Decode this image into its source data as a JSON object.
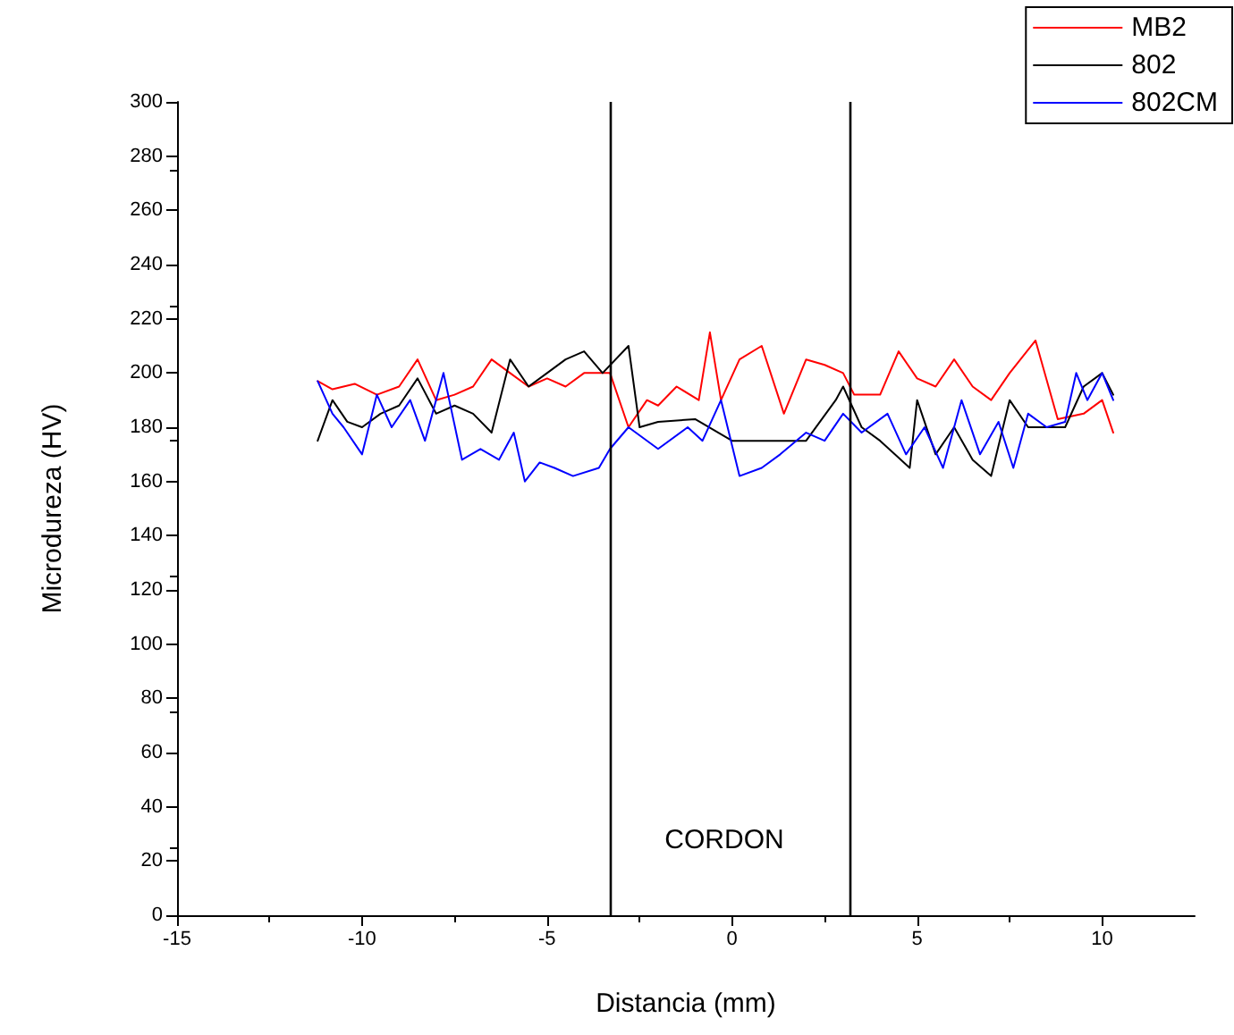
{
  "chart_data": {
    "type": "line",
    "xlabel": "Distancia (mm)",
    "ylabel": "Microdureza (HV)",
    "xlim": [
      -15,
      12.5
    ],
    "xticks": [
      -15,
      -10,
      -5,
      0,
      5,
      10
    ],
    "ylim": [
      0,
      300
    ],
    "yticks": [
      0,
      20,
      40,
      60,
      80,
      100,
      120,
      140,
      160,
      180,
      200,
      220,
      240,
      260,
      280,
      300
    ],
    "grid": false,
    "legend": "top right",
    "marker": "none",
    "line_style": "solid",
    "series": [
      {
        "name": "MB2",
        "color": "#ff0000",
        "x": [
          -11.2,
          -10.8,
          -10.2,
          -9.6,
          -9.0,
          -8.5,
          -8.0,
          -7.5,
          -7.0,
          -6.5,
          -6.0,
          -5.5,
          -5.0,
          -4.5,
          -4.0,
          -3.3,
          -2.8,
          -2.3,
          -2.0,
          -1.5,
          -0.9,
          -0.6,
          -0.3,
          0.2,
          0.8,
          1.4,
          2.0,
          2.5,
          3.0,
          3.3,
          4.0,
          4.5,
          5.0,
          5.5,
          6.0,
          6.5,
          7.0,
          7.5,
          8.2,
          8.8,
          9.5,
          10.0,
          10.3
        ],
        "values": [
          197,
          194,
          196,
          192,
          195,
          205,
          190,
          192,
          195,
          205,
          200,
          195,
          198,
          195,
          200,
          200,
          180,
          190,
          188,
          195,
          190,
          215,
          190,
          205,
          210,
          185,
          205,
          203,
          200,
          192,
          192,
          208,
          198,
          195,
          205,
          195,
          190,
          200,
          212,
          183,
          185,
          190,
          178
        ]
      },
      {
        "name": "802",
        "color": "#000000",
        "x": [
          -11.2,
          -10.8,
          -10.4,
          -10.0,
          -9.5,
          -9.0,
          -8.5,
          -8.0,
          -7.5,
          -7.0,
          -6.5,
          -6.0,
          -5.5,
          -5.0,
          -4.5,
          -4.0,
          -3.5,
          -2.8,
          -2.5,
          -2.0,
          -1.0,
          0.0,
          1.0,
          2.0,
          2.8,
          3.0,
          3.5,
          4.0,
          4.8,
          5.0,
          5.5,
          6.0,
          6.5,
          7.0,
          7.5,
          8.0,
          9.0,
          9.5,
          10.0,
          10.3
        ],
        "values": [
          175,
          190,
          182,
          180,
          185,
          188,
          198,
          185,
          188,
          185,
          178,
          205,
          195,
          200,
          205,
          208,
          200,
          210,
          180,
          182,
          183,
          175,
          175,
          175,
          190,
          195,
          180,
          175,
          165,
          190,
          170,
          180,
          168,
          162,
          190,
          180,
          180,
          195,
          200,
          192
        ]
      },
      {
        "name": "802CM",
        "color": "#0000ff",
        "x": [
          -11.2,
          -10.8,
          -10.5,
          -10.0,
          -9.6,
          -9.2,
          -8.7,
          -8.3,
          -7.8,
          -7.3,
          -6.8,
          -6.3,
          -5.9,
          -5.6,
          -5.2,
          -4.8,
          -4.3,
          -3.6,
          -3.3,
          -2.8,
          -2.0,
          -1.2,
          -0.8,
          -0.3,
          0.2,
          0.8,
          1.3,
          2.0,
          2.5,
          3.0,
          3.5,
          4.2,
          4.7,
          5.2,
          5.7,
          6.2,
          6.7,
          7.2,
          7.6,
          8.0,
          8.5,
          9.0,
          9.3,
          9.6,
          10.0,
          10.3
        ],
        "values": [
          197,
          185,
          180,
          170,
          192,
          180,
          190,
          175,
          200,
          168,
          172,
          168,
          178,
          160,
          167,
          165,
          162,
          165,
          172,
          180,
          172,
          180,
          175,
          190,
          162,
          165,
          170,
          178,
          175,
          185,
          178,
          185,
          170,
          180,
          165,
          190,
          170,
          182,
          165,
          185,
          180,
          182,
          200,
          190,
          200,
          190
        ]
      }
    ],
    "ref_lines": [
      {
        "axis": "x",
        "value": -3.3,
        "color": "#000000"
      },
      {
        "axis": "x",
        "value": 3.2,
        "color": "#000000"
      }
    ],
    "annotations": [
      "CORDON"
    ]
  }
}
